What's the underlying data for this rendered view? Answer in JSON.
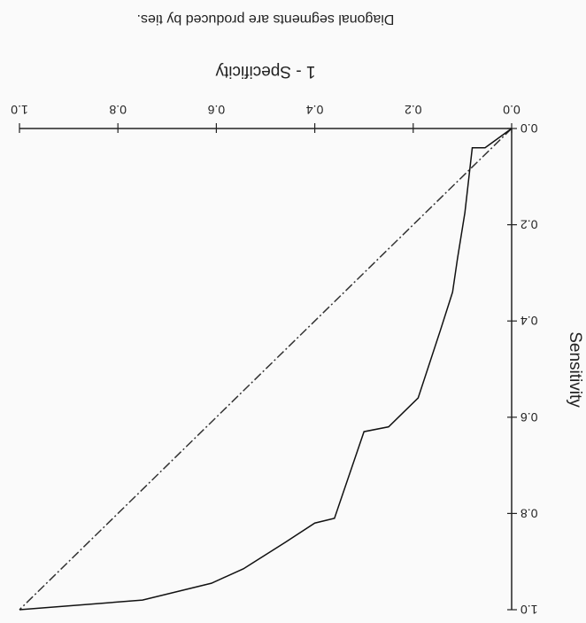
{
  "chart_data": {
    "type": "line",
    "note": "Diagonal segments are produced by ties.",
    "x_label": "1 - Specificity",
    "y_label": "Sensitivity",
    "x": [
      0,
      0.054,
      0.08,
      0.095,
      0.11,
      0.12,
      0.145,
      0.19,
      0.25,
      0.3,
      0.36,
      0.4,
      0.46,
      0.545,
      0.61,
      0.75,
      1
    ],
    "values": [
      0,
      0.04,
      0.04,
      0.175,
      0.27,
      0.34,
      0.42,
      0.56,
      0.62,
      0.63,
      0.81,
      0.82,
      0.86,
      0.915,
      0.945,
      0.98,
      1
    ],
    "color": "#111111",
    "diagonal": {
      "x": [
        0,
        1
      ],
      "values": [
        0,
        1
      ],
      "color": "#333333"
    },
    "xlim": [
      0,
      1
    ],
    "ylim": [
      0,
      1
    ],
    "xticks": [
      {
        "value": 0,
        "label": "0.0"
      },
      {
        "value": 0.2,
        "label": "0.2"
      },
      {
        "value": 0.4,
        "label": "0.4"
      },
      {
        "value": 0.6,
        "label": "0.6"
      },
      {
        "value": 0.8,
        "label": "0.8"
      },
      {
        "value": 1,
        "label": "1.0"
      }
    ],
    "yticks": [
      {
        "value": 0,
        "label": "0.0"
      },
      {
        "value": 0.2,
        "label": "0.2"
      },
      {
        "value": 0.4,
        "label": "0.4"
      },
      {
        "value": 0.6,
        "label": "0.6"
      },
      {
        "value": 0.8,
        "label": "0.8"
      },
      {
        "value": 1,
        "label": "1.0"
      }
    ],
    "rotated_180": true
  }
}
